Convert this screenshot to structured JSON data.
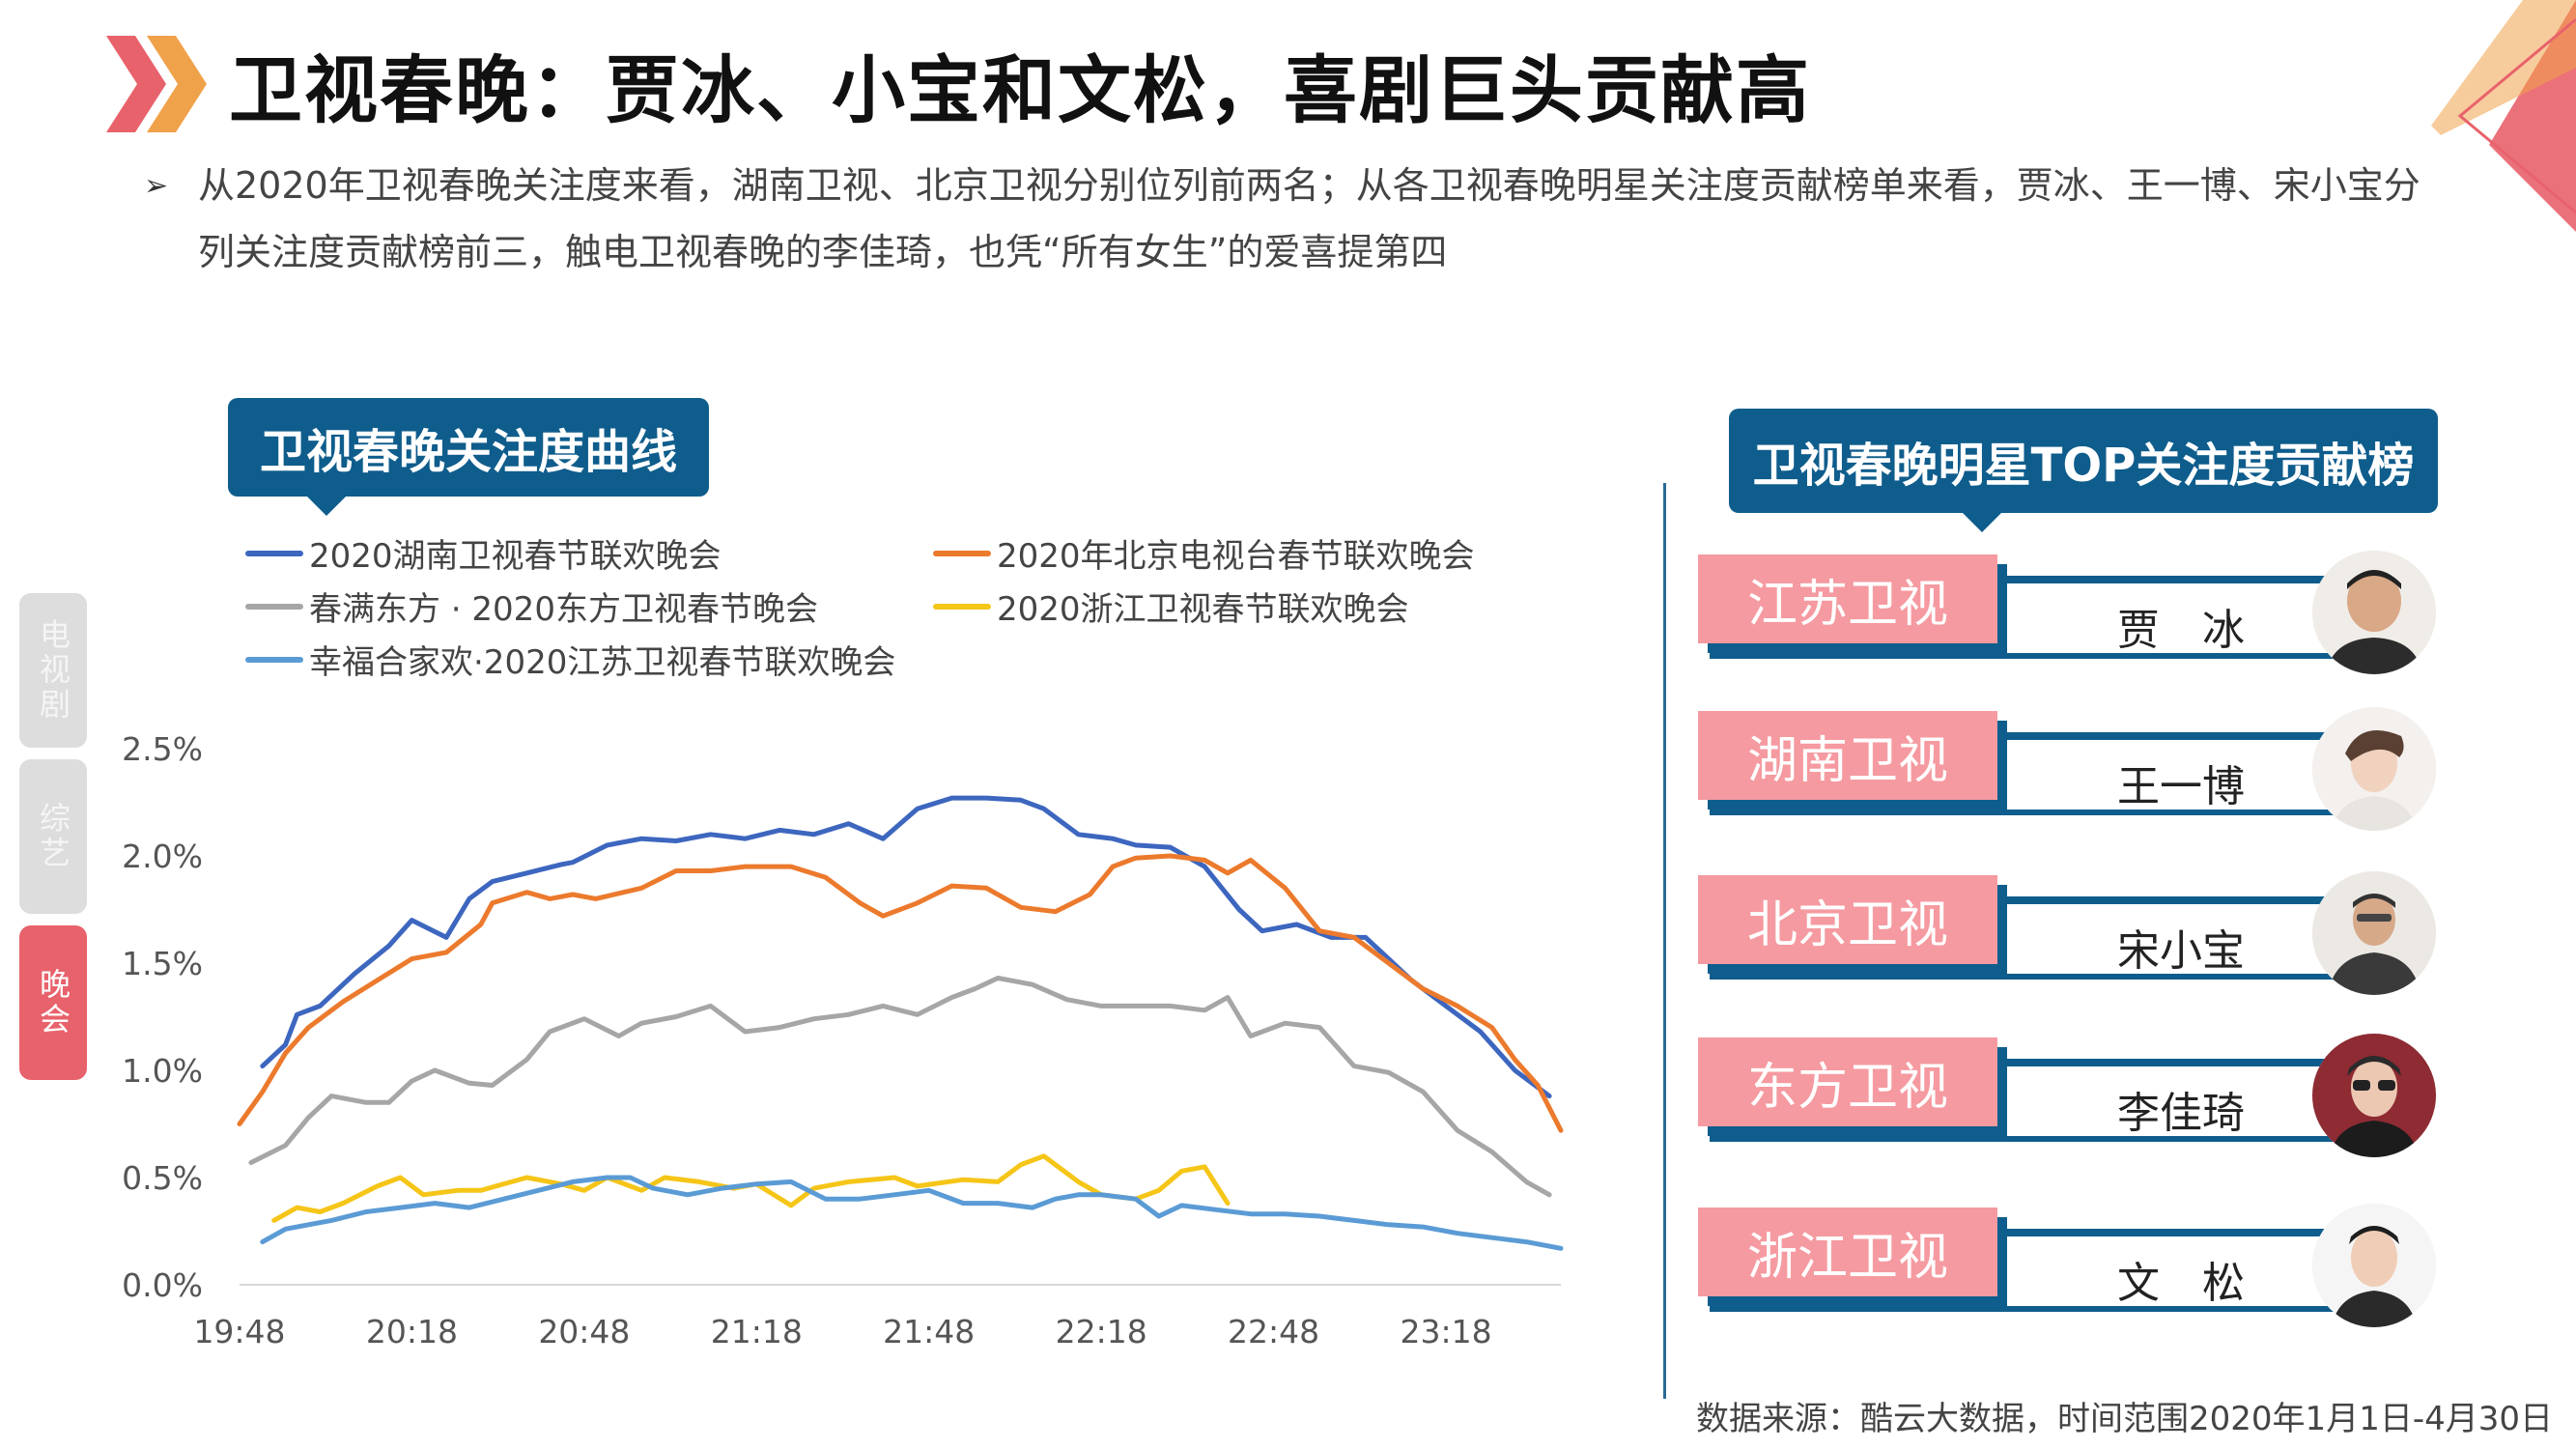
{
  "page": {
    "title": "卫视春晚：贾冰、小宝和文松，喜剧巨头贡献高",
    "summary": "从2020年卫视春晚关注度来看，湖南卫视、北京卫视分别位列前两名；从各卫视春晚明星关注度贡献榜单来看，贾冰、王一博、宋小宝分列关注度贡献榜前三，触电卫视春晚的李佳琦，也凭“所有女生”的爱喜提第四",
    "source": "数据来源：酷云大数据，时间范围2020年1月1日-4月30日",
    "bullet_glyph": "➢",
    "accent_color": "#e8626b",
    "brand_color": "#0f5d8c"
  },
  "side_tabs": [
    {
      "label": "电视剧",
      "active": false
    },
    {
      "label": "综艺",
      "active": false
    },
    {
      "label": "晚会",
      "active": true
    }
  ],
  "left_panel": {
    "banner": "卫视春晚关注度曲线"
  },
  "right_panel": {
    "banner": "卫视春晚明星TOP关注度贡献榜",
    "ranking": [
      {
        "channel": "江苏卫视",
        "star": "贾　冰",
        "avatar_icon": "person-avatar-icon"
      },
      {
        "channel": "湖南卫视",
        "star": "王一博",
        "avatar_icon": "person-avatar-icon"
      },
      {
        "channel": "北京卫视",
        "star": "宋小宝",
        "avatar_icon": "person-avatar-icon"
      },
      {
        "channel": "东方卫视",
        "star": "李佳琦",
        "avatar_icon": "person-avatar-icon"
      },
      {
        "channel": "浙江卫视",
        "star": "文　松",
        "avatar_icon": "person-avatar-icon"
      }
    ]
  },
  "chart_data": {
    "type": "line",
    "title": "卫视春晚关注度曲线",
    "xlabel": "",
    "ylabel": "",
    "x_ticks": [
      "19:48",
      "20:18",
      "20:48",
      "21:18",
      "21:48",
      "22:18",
      "22:48",
      "23:18"
    ],
    "y_ticks": [
      "0.0%",
      "0.5%",
      "1.0%",
      "1.5%",
      "2.0%",
      "2.5%"
    ],
    "ylim": [
      0,
      2.5
    ],
    "x_range_minutes": [
      0,
      230
    ],
    "grid": false,
    "series": [
      {
        "name": "2020湖南卫视春节联欢晚会",
        "color": "#3d66bf",
        "x": [
          4,
          8,
          10,
          14,
          20,
          26,
          30,
          36,
          40,
          44,
          50,
          56,
          58,
          64,
          70,
          76,
          82,
          88,
          94,
          100,
          106,
          112,
          118,
          124,
          130,
          136,
          140,
          146,
          152,
          156,
          162,
          168,
          174,
          178,
          184,
          190,
          196,
          200,
          204,
          210,
          216,
          222,
          228
        ],
        "values": [
          1.02,
          1.12,
          1.26,
          1.3,
          1.45,
          1.58,
          1.7,
          1.62,
          1.8,
          1.88,
          1.92,
          1.96,
          1.97,
          2.05,
          2.08,
          2.07,
          2.1,
          2.08,
          2.12,
          2.1,
          2.15,
          2.08,
          2.22,
          2.27,
          2.27,
          2.26,
          2.22,
          2.1,
          2.08,
          2.05,
          2.04,
          1.95,
          1.75,
          1.65,
          1.68,
          1.62,
          1.62,
          1.52,
          1.42,
          1.3,
          1.18,
          1.0,
          0.88
        ]
      },
      {
        "name": "2020年北京电视台春节联欢晚会",
        "color": "#ec7a2d",
        "x": [
          0,
          4,
          8,
          12,
          18,
          24,
          30,
          36,
          42,
          44,
          50,
          54,
          58,
          62,
          70,
          76,
          82,
          88,
          96,
          102,
          108,
          112,
          118,
          124,
          130,
          136,
          142,
          148,
          152,
          156,
          162,
          168,
          172,
          176,
          182,
          188,
          194,
          200,
          206,
          212,
          218,
          222,
          226,
          230
        ],
        "values": [
          0.75,
          0.9,
          1.08,
          1.2,
          1.32,
          1.42,
          1.52,
          1.55,
          1.68,
          1.78,
          1.83,
          1.8,
          1.82,
          1.8,
          1.85,
          1.93,
          1.93,
          1.95,
          1.95,
          1.9,
          1.78,
          1.72,
          1.78,
          1.86,
          1.85,
          1.76,
          1.74,
          1.82,
          1.95,
          1.99,
          2.0,
          1.98,
          1.92,
          1.98,
          1.85,
          1.65,
          1.62,
          1.5,
          1.38,
          1.3,
          1.2,
          1.05,
          0.93,
          0.72
        ]
      },
      {
        "name": "春满东方 · 2020东方卫视春节晚会",
        "color": "#a6a6a6",
        "x": [
          2,
          8,
          12,
          16,
          22,
          26,
          30,
          34,
          40,
          44,
          50,
          54,
          60,
          66,
          70,
          76,
          82,
          88,
          94,
          100,
          106,
          112,
          118,
          124,
          128,
          132,
          138,
          144,
          150,
          156,
          162,
          168,
          172,
          176,
          182,
          188,
          194,
          200,
          206,
          212,
          218,
          224,
          228
        ],
        "values": [
          0.57,
          0.65,
          0.78,
          0.88,
          0.85,
          0.85,
          0.95,
          1.0,
          0.94,
          0.93,
          1.05,
          1.18,
          1.24,
          1.16,
          1.22,
          1.25,
          1.3,
          1.18,
          1.2,
          1.24,
          1.26,
          1.3,
          1.26,
          1.34,
          1.38,
          1.43,
          1.4,
          1.33,
          1.3,
          1.3,
          1.3,
          1.28,
          1.34,
          1.16,
          1.22,
          1.2,
          1.02,
          0.99,
          0.9,
          0.72,
          0.62,
          0.48,
          0.42
        ]
      },
      {
        "name": "2020浙江卫视春节联欢晚会",
        "color": "#f5c518",
        "x": [
          6,
          10,
          14,
          18,
          24,
          28,
          32,
          38,
          42,
          50,
          56,
          60,
          64,
          70,
          74,
          80,
          86,
          90,
          96,
          100,
          106,
          114,
          118,
          126,
          132,
          136,
          140,
          146,
          150,
          156,
          160,
          164,
          168,
          172
        ],
        "values": [
          0.3,
          0.36,
          0.34,
          0.38,
          0.46,
          0.5,
          0.42,
          0.44,
          0.44,
          0.5,
          0.47,
          0.44,
          0.5,
          0.44,
          0.5,
          0.48,
          0.45,
          0.47,
          0.37,
          0.45,
          0.48,
          0.5,
          0.46,
          0.49,
          0.48,
          0.56,
          0.6,
          0.48,
          0.42,
          0.4,
          0.44,
          0.53,
          0.55,
          0.38
        ]
      },
      {
        "name": "幸福合家欢·2020江苏卫视春节联欢晚会",
        "color": "#5b9bd5",
        "x": [
          4,
          8,
          12,
          16,
          22,
          28,
          34,
          40,
          46,
          52,
          58,
          64,
          68,
          72,
          78,
          84,
          90,
          96,
          102,
          108,
          114,
          120,
          126,
          132,
          138,
          142,
          146,
          150,
          156,
          160,
          164,
          170,
          176,
          182,
          188,
          194,
          200,
          206,
          212,
          218,
          224,
          230
        ],
        "values": [
          0.2,
          0.26,
          0.28,
          0.3,
          0.34,
          0.36,
          0.38,
          0.36,
          0.4,
          0.44,
          0.48,
          0.5,
          0.5,
          0.45,
          0.42,
          0.45,
          0.47,
          0.48,
          0.4,
          0.4,
          0.42,
          0.44,
          0.38,
          0.38,
          0.36,
          0.4,
          0.42,
          0.42,
          0.4,
          0.32,
          0.37,
          0.35,
          0.33,
          0.33,
          0.32,
          0.3,
          0.28,
          0.27,
          0.24,
          0.22,
          0.2,
          0.17
        ]
      }
    ]
  }
}
